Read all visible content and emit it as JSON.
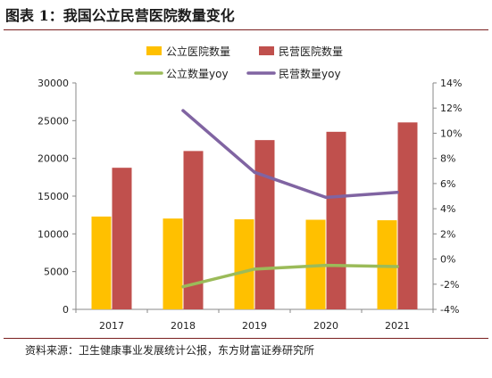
{
  "figure": {
    "title": "图表 1：我国公立民营医院数量变化",
    "source": "资料来源：卫生健康事业发展统计公报，东方财富证券研究所"
  },
  "chart_data": {
    "type": "bar",
    "categories": [
      "2017",
      "2018",
      "2019",
      "2020",
      "2021"
    ],
    "series": [
      {
        "name": "公立医院数量",
        "kind": "bar",
        "axis": "left",
        "color": "#FFC000",
        "values": [
          12297,
          12032,
          11930,
          11870,
          11804
        ]
      },
      {
        "name": "民营医院数量",
        "kind": "bar",
        "axis": "left",
        "color": "#C0504D",
        "values": [
          18759,
          20977,
          22424,
          23524,
          24766
        ]
      },
      {
        "name": "公立数量yoy",
        "kind": "line",
        "axis": "right",
        "color": "#9BBB59",
        "values": [
          null,
          -2.2,
          -0.8,
          -0.5,
          -0.6
        ]
      },
      {
        "name": "民营数量yoy",
        "kind": "line",
        "axis": "right",
        "color": "#8064A2",
        "values": [
          null,
          11.8,
          6.9,
          4.9,
          5.3
        ]
      }
    ],
    "y_left": {
      "min": 0,
      "max": 30000,
      "ticks": [
        "0",
        "5000",
        "10000",
        "15000",
        "20000",
        "25000",
        "30000"
      ]
    },
    "y_right": {
      "min": -4,
      "max": 14,
      "ticks": [
        "-4%",
        "-2%",
        "0%",
        "2%",
        "4%",
        "6%",
        "8%",
        "10%",
        "12%",
        "14%"
      ]
    },
    "legend_placement": "top-center",
    "grid": false
  }
}
